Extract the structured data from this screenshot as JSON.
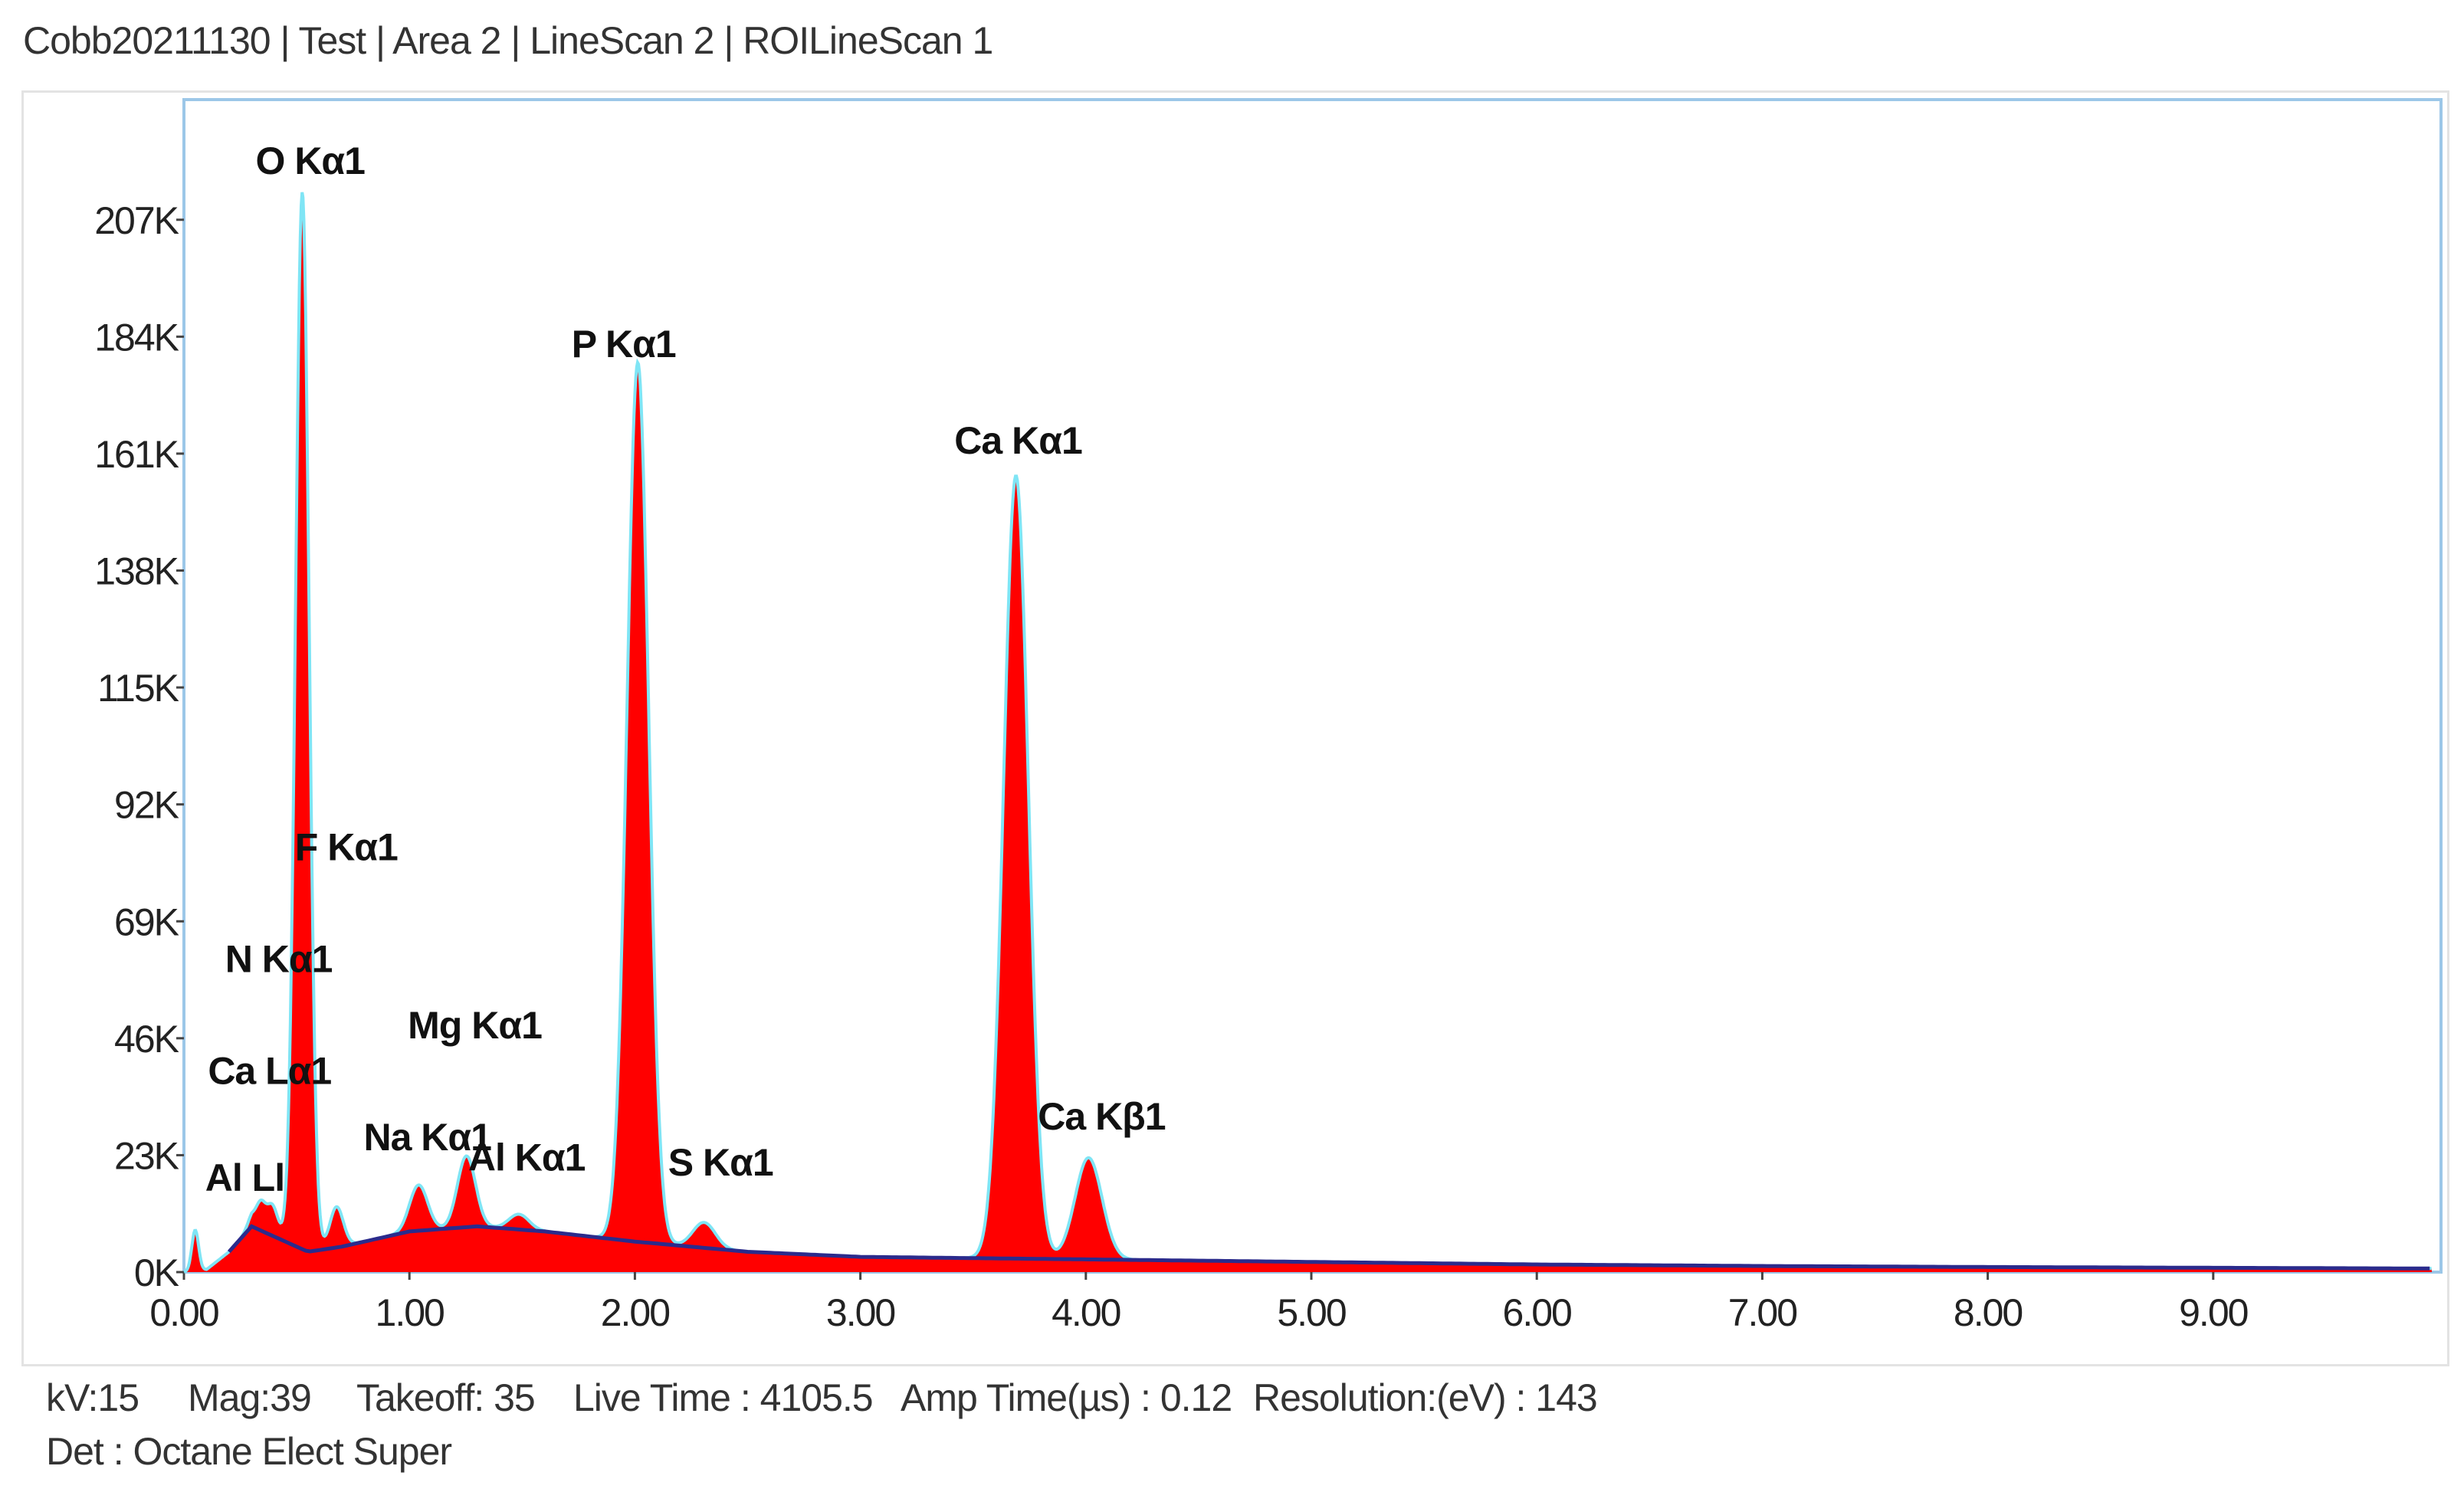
{
  "title": "Cobb20211130 | Test | Area 2 | LineScan 2 |  ROILineScan 1",
  "colors": {
    "spectrum_fill": "#ff0000",
    "outline": "#7fe5f5",
    "background_curve": "#2b2b8c",
    "plot_border": "#9cc7e8",
    "text": "#222222"
  },
  "footer": {
    "kv": "kV:15",
    "mag": "Mag:39",
    "takeoff": "Takeoff: 35",
    "live_time": "Live Time : 4105.5",
    "amp_time": "Amp Time(µs) : 0.12",
    "resolution": "Resolution:(eV) : 143",
    "detector": "Det : Octane Elect Super"
  },
  "chart_data": {
    "type": "area",
    "title": "",
    "xlabel": "",
    "ylabel": "",
    "xlim": [
      0,
      10
    ],
    "ylim": [
      0,
      230
    ],
    "x_ticks": [
      "0.00",
      "1.00",
      "2.00",
      "3.00",
      "4.00",
      "5.00",
      "6.00",
      "7.00",
      "8.00",
      "9.00"
    ],
    "y_ticks": [
      "0K",
      "23K",
      "46K",
      "69K",
      "92K",
      "115K",
      "138K",
      "161K",
      "184K",
      "207K"
    ],
    "grid": false,
    "peaks": [
      {
        "label": "O  Kα1",
        "energy": 0.525,
        "counts_k": 208,
        "width": 0.03
      },
      {
        "label": "F  Kα1",
        "energy": 0.677,
        "counts_k": 8,
        "width": 0.03
      },
      {
        "label": "N  Kα1",
        "energy": 0.392,
        "counts_k": 6,
        "width": 0.025
      },
      {
        "label": "Ca Lα1",
        "energy": 0.341,
        "counts_k": 5,
        "width": 0.02
      },
      {
        "label": "Al Ll",
        "energy": 0.3,
        "counts_k": 2,
        "width": 0.02
      },
      {
        "label": "Na Kα1",
        "energy": 1.041,
        "counts_k": 9,
        "width": 0.04
      },
      {
        "label": "Mg Kα1",
        "energy": 1.253,
        "counts_k": 14,
        "width": 0.04
      },
      {
        "label": "Al Kα1",
        "energy": 1.486,
        "counts_k": 3,
        "width": 0.045
      },
      {
        "label": "P  Kα1",
        "energy": 2.013,
        "counts_k": 173,
        "width": 0.048
      },
      {
        "label": "S  Kα1",
        "energy": 2.307,
        "counts_k": 5,
        "width": 0.05
      },
      {
        "label": "Ca Kα1",
        "energy": 3.69,
        "counts_k": 154,
        "width": 0.055
      },
      {
        "label": "Ca Kβ1",
        "energy": 4.012,
        "counts_k": 20,
        "width": 0.06
      }
    ],
    "label_positions_k": [
      {
        "label": "O  Kα1",
        "energy": 0.56,
        "counts_k": 216
      },
      {
        "label": "F  Kα1",
        "energy": 0.72,
        "counts_k": 81
      },
      {
        "label": "N  Kα1",
        "energy": 0.42,
        "counts_k": 59
      },
      {
        "label": "Ca Lα1",
        "energy": 0.38,
        "counts_k": 37
      },
      {
        "label": "Al Ll",
        "energy": 0.27,
        "counts_k": 16
      },
      {
        "label": "Na Kα1",
        "energy": 1.08,
        "counts_k": 24
      },
      {
        "label": "Mg Kα1",
        "energy": 1.29,
        "counts_k": 46
      },
      {
        "label": "Al Kα1",
        "energy": 1.52,
        "counts_k": 20
      },
      {
        "label": "P  Kα1",
        "energy": 1.95,
        "counts_k": 180
      },
      {
        "label": "S  Kα1",
        "energy": 2.38,
        "counts_k": 19
      },
      {
        "label": "Ca Kα1",
        "energy": 3.7,
        "counts_k": 161
      },
      {
        "label": "Ca Kβ1",
        "energy": 4.07,
        "counts_k": 28
      }
    ],
    "background": [
      [
        0.0,
        0
      ],
      [
        0.1,
        0.5
      ],
      [
        0.2,
        4
      ],
      [
        0.3,
        9
      ],
      [
        0.4,
        7
      ],
      [
        0.55,
        4
      ],
      [
        0.7,
        5
      ],
      [
        1.0,
        8
      ],
      [
        1.3,
        9
      ],
      [
        1.6,
        8
      ],
      [
        2.0,
        6
      ],
      [
        2.5,
        4
      ],
      [
        3.0,
        3
      ],
      [
        4.0,
        2.5
      ],
      [
        5.0,
        2
      ],
      [
        6.0,
        1.5
      ],
      [
        7.0,
        1.2
      ],
      [
        8.0,
        1
      ],
      [
        10.0,
        0.7
      ]
    ]
  }
}
